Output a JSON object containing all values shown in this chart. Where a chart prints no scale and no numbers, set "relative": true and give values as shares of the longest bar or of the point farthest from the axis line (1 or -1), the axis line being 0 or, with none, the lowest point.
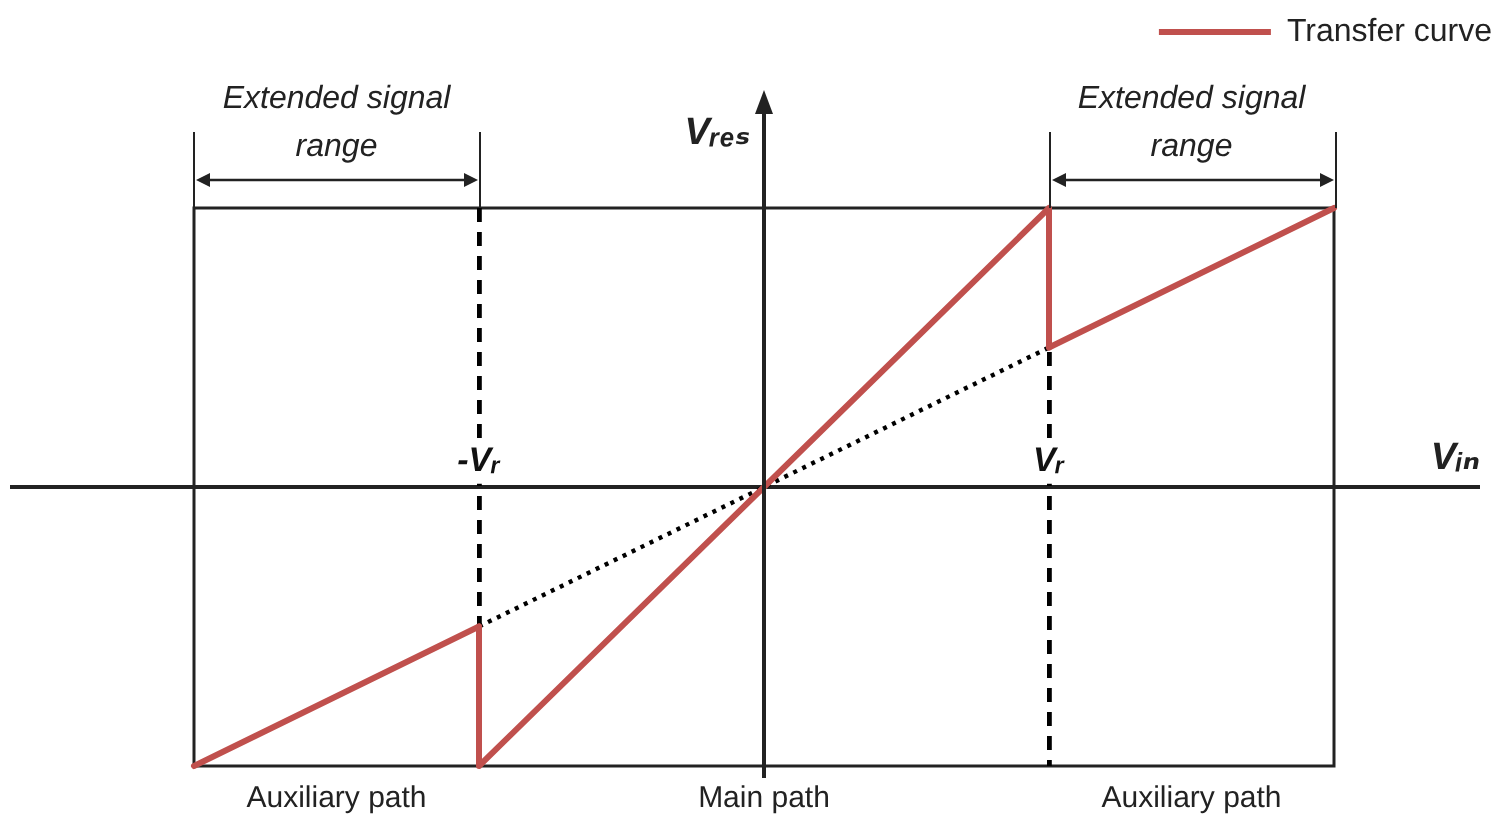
{
  "chart_data": {
    "type": "line",
    "xlabel": "Vᵢₙ",
    "ylabel": "Vᵣₑₛ",
    "categories": [
      null,
      "-Vᵣ",
      null,
      "Vᵣ",
      null
    ],
    "series": [
      {
        "name": "Transfer curve",
        "color": "#c0504d",
        "x": [
          "-Vᵣ",
          "-Vᵣ",
          "Vᵣ",
          "Vᵣ"
        ],
        "values": [
          -0.5,
          -1,
          1,
          0.5
        ]
      },
      {
        "color": "#c0504d",
        "values": [
          -1,
          -0.5,
          null,
          0.5,
          1
        ]
      },
      {
        "color": "#000000",
        "values": [
          null,
          -0.5,
          0,
          0.5,
          null
        ],
        "line_style": "dotted"
      }
    ],
    "relative": true,
    "grid": "x",
    "annotations": [
      "Extended signal range",
      "Extended signal range",
      "Auxiliary path",
      "Main path",
      "Auxiliary path"
    ],
    "legend": "top right"
  }
}
